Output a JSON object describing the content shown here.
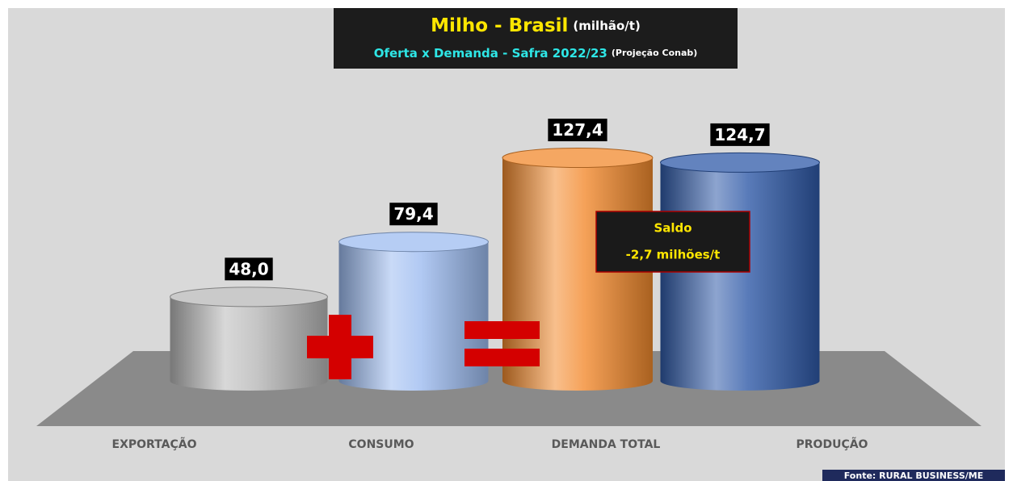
{
  "chart_data": {
    "type": "bar",
    "title": "Milho - Brasil",
    "title_unit": "(milhão/t)",
    "subtitle": "Oferta x Demanda - Safra 2022/23",
    "subtitle_note": "(Projeção Conab)",
    "categories": [
      "EXPORTAÇÃO",
      "CONSUMO",
      "DEMANDA TOTAL",
      "PRODUÇÃO"
    ],
    "values": [
      48.0,
      79.4,
      127.4,
      124.7
    ],
    "value_labels": [
      "48,0",
      "79,4",
      "127,4",
      "124,7"
    ],
    "colors": [
      "#b8b8b8",
      "#9dbcf0",
      "#f28a2e",
      "#2f5aa8"
    ],
    "annotation": {
      "title": "Saldo",
      "text": "-2,7 milhões/t"
    },
    "source": "Fonte: RURAL BUSINESS/ME"
  }
}
